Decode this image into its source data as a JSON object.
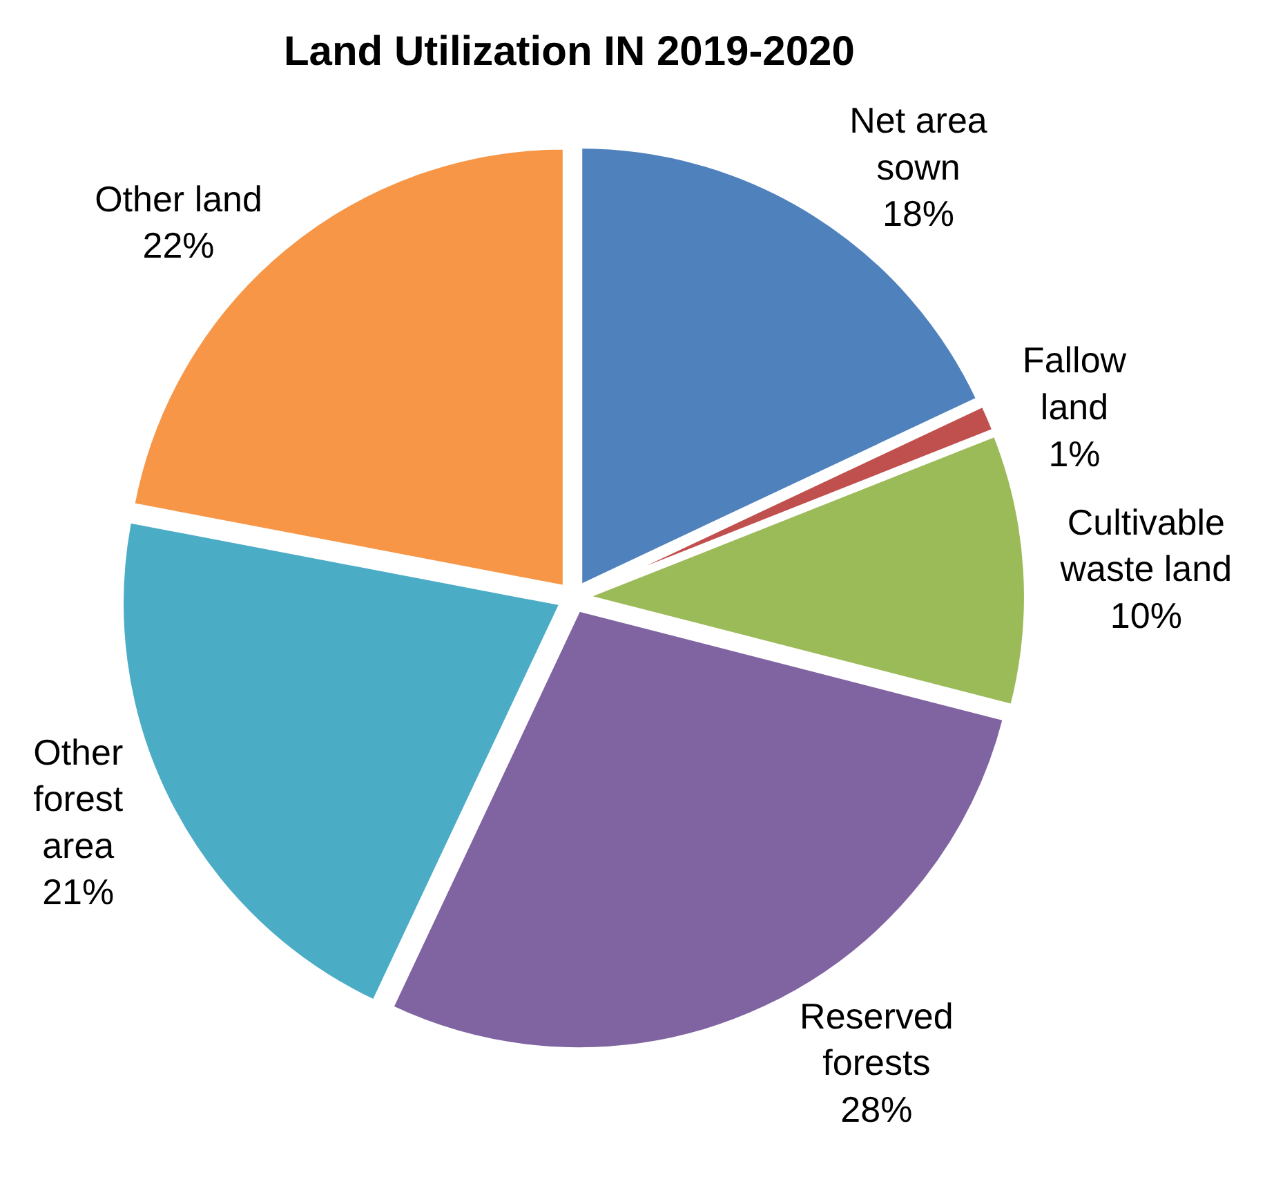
{
  "chart_data": {
    "type": "pie",
    "title": "Land Utilization IN 2019-2020",
    "categories": [
      "Net area sown",
      "Fallow land",
      "Cultivable waste land",
      "Reserved forests",
      "Other forest area",
      "Other land"
    ],
    "values": [
      18,
      1,
      10,
      28,
      21,
      22
    ],
    "value_labels": [
      "18%",
      "1%",
      "10%",
      "28%",
      "21%",
      "22%"
    ],
    "colors": [
      "#4f81bd",
      "#c0504d",
      "#9bbb59",
      "#8064a2",
      "#4bacc6",
      "#f79646"
    ],
    "legend": false
  }
}
